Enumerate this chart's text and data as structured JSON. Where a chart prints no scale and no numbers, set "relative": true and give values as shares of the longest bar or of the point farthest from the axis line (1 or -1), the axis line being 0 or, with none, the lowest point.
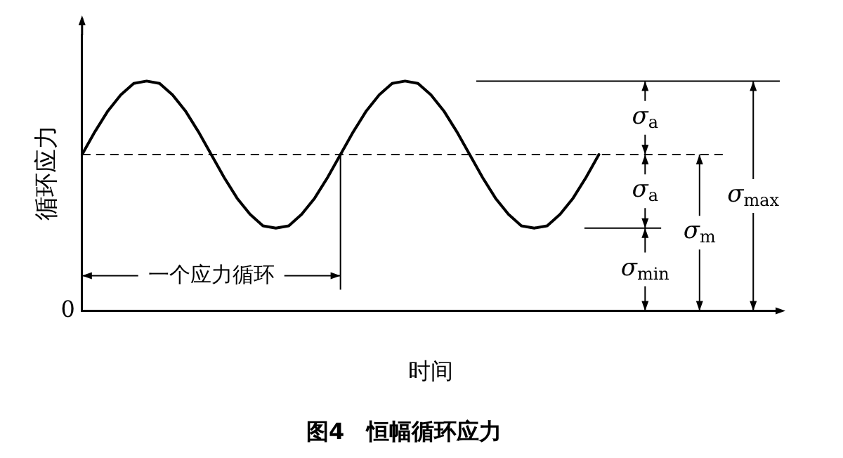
{
  "chart_data": {
    "type": "line",
    "title": "图4　恒幅循环应力",
    "xlabel": "时间",
    "ylabel": "循环应力",
    "relative": true,
    "grid": false,
    "legend": false,
    "marker": "none",
    "line_style": "solid",
    "categories": [
      null,
      null,
      null,
      null,
      null,
      null,
      null,
      null,
      null,
      null,
      null,
      null,
      null,
      null,
      null,
      null,
      null,
      null,
      null,
      null,
      null,
      null,
      null,
      null,
      null,
      null,
      null,
      null,
      null,
      null,
      null,
      null,
      null,
      null,
      null,
      null,
      null,
      null,
      null,
      null,
      null,
      null,
      null,
      null,
      null,
      null,
      null,
      null,
      null,
      null,
      null,
      null,
      null,
      null,
      null
    ],
    "series": [
      {
        "color": "#000000",
        "values": [
          0.68,
          0.78,
          0.87,
          0.94,
          0.99,
          1.0,
          0.99,
          0.94,
          0.87,
          0.78,
          0.68,
          0.58,
          0.49,
          0.42,
          0.37,
          0.36,
          0.37,
          0.42,
          0.49,
          0.58,
          0.68,
          0.78,
          0.87,
          0.94,
          0.99,
          1.0,
          0.99,
          0.94,
          0.87,
          0.78,
          0.68,
          0.58,
          0.49,
          0.42,
          0.37,
          0.36,
          0.37,
          0.42,
          0.49,
          0.58,
          0.68,
          null,
          null,
          null,
          null,
          null,
          null,
          null,
          null,
          null,
          null,
          null,
          null,
          null,
          null
        ]
      }
    ],
    "ref_lines": [
      {
        "axis": "y",
        "value": 0.68,
        "line_style": "dashed"
      },
      {
        "axis": "y",
        "value": 1.0
      },
      {
        "axis": "y",
        "value": 0.36
      }
    ],
    "annotations": [
      "0",
      "一个应力循环",
      "σ$_{a}$",
      "σ$_{a}$",
      "σ$_{min}$",
      "σ$_{m}$",
      "σ$_{max}$"
    ]
  }
}
